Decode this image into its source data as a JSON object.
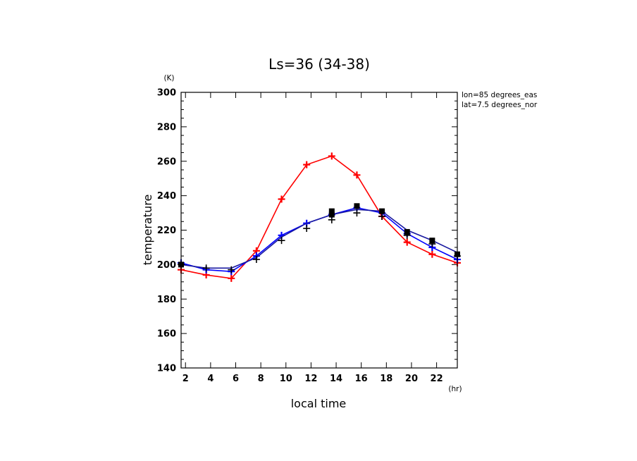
{
  "chart_data": {
    "type": "line",
    "title": "Ls=36 (34-38)",
    "xlabel": "local time",
    "ylabel": "temperature",
    "x_unit": "(hr)",
    "y_unit": "(K)",
    "annotations": [
      "lon=85 degrees_eas",
      "lat=7.5 degrees_nor"
    ],
    "xlim": [
      1.65,
      23.65
    ],
    "ylim": [
      140,
      300
    ],
    "xticks": [
      2,
      4,
      6,
      8,
      10,
      12,
      14,
      16,
      18,
      20,
      22
    ],
    "yticks": [
      140,
      160,
      180,
      200,
      220,
      240,
      260,
      280,
      300
    ],
    "x": [
      1.65,
      3.65,
      5.65,
      7.65,
      9.65,
      11.65,
      13.65,
      15.65,
      17.65,
      19.65,
      21.65,
      23.65
    ],
    "series": [
      {
        "color": "#ff0000",
        "marker": "plus",
        "values": [
          197,
          194,
          192,
          208,
          238,
          258,
          263,
          252,
          228,
          213,
          206,
          201
        ]
      },
      {
        "color": "#0000ff",
        "marker": "plus",
        "values": [
          201,
          197,
          196,
          205,
          217,
          224,
          229,
          233,
          230,
          218,
          210,
          203
        ]
      },
      {
        "color": "#1a1aa0",
        "marker": "none",
        "values": [
          200,
          198,
          198,
          204,
          216,
          224,
          229,
          232,
          231,
          220,
          214,
          207
        ]
      }
    ],
    "observations": {
      "color": "#000000",
      "squares": [
        {
          "x": 1.65,
          "y": 200
        },
        {
          "x": 13.65,
          "y": 229
        },
        {
          "x": 13.65,
          "y": 231
        },
        {
          "x": 15.65,
          "y": 234
        },
        {
          "x": 17.65,
          "y": 231
        },
        {
          "x": 19.65,
          "y": 219
        },
        {
          "x": 21.65,
          "y": 214
        },
        {
          "x": 23.65,
          "y": 206
        }
      ],
      "plus": [
        {
          "x": 1.65,
          "y": 200
        },
        {
          "x": 3.65,
          "y": 198
        },
        {
          "x": 5.65,
          "y": 197
        },
        {
          "x": 7.65,
          "y": 203
        },
        {
          "x": 9.65,
          "y": 214
        },
        {
          "x": 11.65,
          "y": 221
        },
        {
          "x": 13.65,
          "y": 226
        },
        {
          "x": 15.65,
          "y": 230
        },
        {
          "x": 17.65,
          "y": 228
        },
        {
          "x": 19.65,
          "y": 217
        },
        {
          "x": 21.65,
          "y": 212
        },
        {
          "x": 23.65,
          "y": 205
        }
      ]
    }
  }
}
